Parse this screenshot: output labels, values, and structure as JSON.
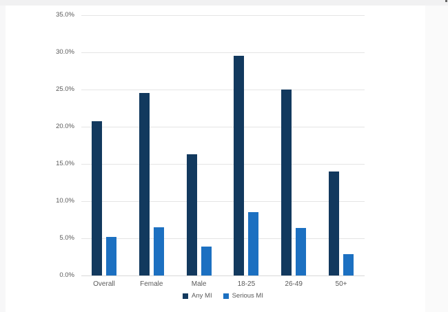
{
  "frame": {
    "top_color": "#f1f1f2",
    "left_color": "#f7f7f8",
    "right_color": "#fafafa"
  },
  "chart_data": {
    "type": "bar",
    "title": "",
    "xlabel": "",
    "ylabel": "",
    "categories": [
      "Overall",
      "Female",
      "Male",
      "18-25",
      "26-49",
      "50+"
    ],
    "series": [
      {
        "name": "Any MI",
        "color": "#12395E",
        "values": [
          20.7,
          24.5,
          16.3,
          29.5,
          25.0,
          14.0
        ]
      },
      {
        "name": "Serious MI",
        "color": "#1C70C1",
        "values": [
          5.2,
          6.5,
          3.9,
          8.5,
          6.4,
          2.9
        ]
      }
    ],
    "ylim": [
      0,
      35
    ],
    "ytick_step": 5,
    "ytick_labels": [
      "0.0%",
      "5.0%",
      "10.0%",
      "15.0%",
      "20.0%",
      "25.0%",
      "30.0%",
      "35.0%"
    ],
    "grid": true,
    "legend_position": "bottom",
    "colors": {
      "gridline": "#e4e4e4",
      "zero_line": "#d8d8d8",
      "axis_text": "#595959"
    }
  }
}
